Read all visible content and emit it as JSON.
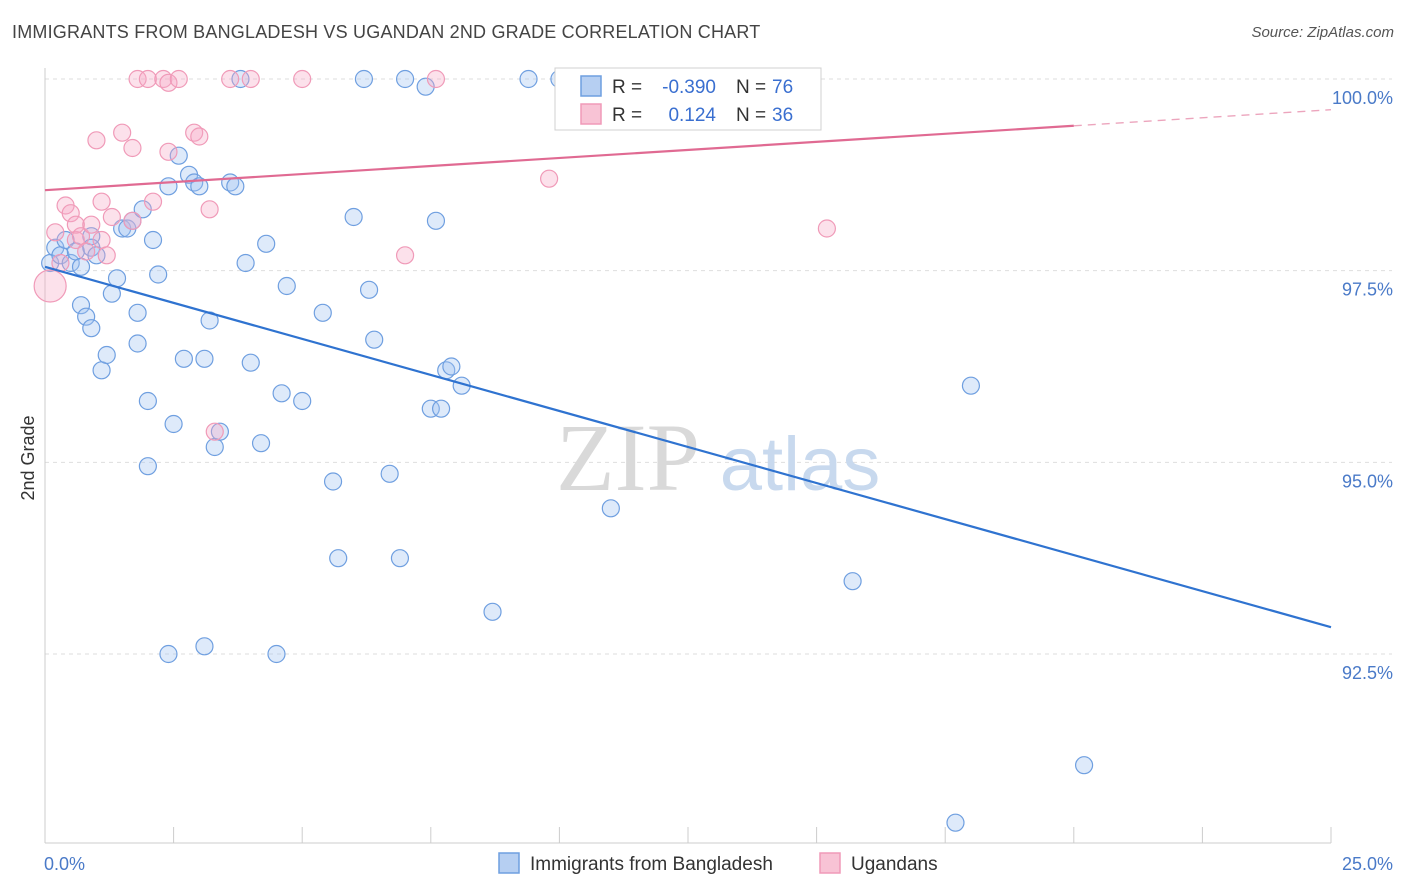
{
  "header": {
    "title": "IMMIGRANTS FROM BANGLADESH VS UGANDAN 2ND GRADE CORRELATION CHART",
    "source": "Source: ZipAtlas.com"
  },
  "watermark": {
    "zip": "ZIP",
    "atlas": "atlas"
  },
  "chart_data": {
    "type": "scatter",
    "ylabel": "2nd Grade",
    "xlim": [
      0,
      25
    ],
    "ylim": [
      90.3,
      100.35
    ],
    "x_tick_labels": {
      "min": "0.0%",
      "max": "25.0%"
    },
    "y_ticks": [
      {
        "value": 100.0,
        "label": "100.0%"
      },
      {
        "value": 97.5,
        "label": "97.5%"
      },
      {
        "value": 95.0,
        "label": "95.0%"
      },
      {
        "value": 92.5,
        "label": "92.5%"
      }
    ],
    "grid": true,
    "legend_position": "top-center",
    "stats": [
      {
        "r_label": "R =",
        "r_value": "-0.390",
        "n_label": "N =",
        "n_value": "76"
      },
      {
        "r_label": "R =",
        "r_value": "0.124",
        "n_label": "N =",
        "n_value": "36"
      }
    ],
    "series": [
      {
        "name": "Immigrants from Bangladesh",
        "color": "#6f9fe0",
        "line_color": "#2f73d0",
        "trend": {
          "x0": 0,
          "y0": 97.55,
          "x1": 25,
          "y1": 92.85,
          "solid_until": 25
        },
        "points": [
          [
            0.1,
            97.6
          ],
          [
            0.2,
            97.8
          ],
          [
            0.3,
            97.7
          ],
          [
            0.4,
            97.9
          ],
          [
            0.5,
            97.6
          ],
          [
            0.6,
            97.75
          ],
          [
            0.7,
            97.55
          ],
          [
            0.9,
            97.95
          ],
          [
            0.9,
            97.8
          ],
          [
            1.0,
            97.7
          ],
          [
            0.7,
            97.05
          ],
          [
            0.8,
            96.9
          ],
          [
            0.9,
            96.75
          ],
          [
            1.1,
            96.2
          ],
          [
            1.2,
            96.4
          ],
          [
            1.3,
            97.2
          ],
          [
            1.4,
            97.4
          ],
          [
            1.5,
            98.05
          ],
          [
            1.6,
            98.05
          ],
          [
            1.7,
            98.15
          ],
          [
            1.8,
            96.55
          ],
          [
            1.8,
            96.95
          ],
          [
            1.9,
            98.3
          ],
          [
            2.0,
            95.8
          ],
          [
            2.1,
            97.9
          ],
          [
            2.2,
            97.45
          ],
          [
            2.4,
            98.6
          ],
          [
            2.6,
            99.0
          ],
          [
            2.7,
            96.35
          ],
          [
            2.8,
            98.75
          ],
          [
            2.9,
            98.65
          ],
          [
            3.0,
            98.6
          ],
          [
            3.1,
            96.35
          ],
          [
            3.2,
            96.85
          ],
          [
            3.3,
            95.2
          ],
          [
            3.4,
            95.4
          ],
          [
            3.6,
            98.65
          ],
          [
            3.7,
            98.6
          ],
          [
            3.8,
            100.0
          ],
          [
            3.9,
            97.6
          ],
          [
            4.0,
            96.3
          ],
          [
            4.2,
            95.25
          ],
          [
            4.3,
            97.85
          ],
          [
            4.5,
            92.5
          ],
          [
            4.6,
            95.9
          ],
          [
            4.7,
            97.3
          ],
          [
            5.0,
            95.8
          ],
          [
            5.4,
            96.95
          ],
          [
            5.6,
            94.75
          ],
          [
            5.7,
            93.75
          ],
          [
            6.0,
            98.2
          ],
          [
            6.2,
            100.0
          ],
          [
            6.3,
            97.25
          ],
          [
            6.4,
            96.6
          ],
          [
            6.7,
            94.85
          ],
          [
            6.9,
            93.75
          ],
          [
            7.0,
            100.0
          ],
          [
            7.4,
            99.9
          ],
          [
            7.5,
            95.7
          ],
          [
            7.6,
            98.15
          ],
          [
            7.7,
            95.7
          ],
          [
            7.8,
            96.2
          ],
          [
            7.9,
            96.25
          ],
          [
            8.1,
            96.0
          ],
          [
            2.0,
            94.95
          ],
          [
            2.5,
            95.5
          ],
          [
            2.4,
            92.5
          ],
          [
            3.1,
            92.6
          ],
          [
            8.7,
            93.05
          ],
          [
            9.4,
            100.0
          ],
          [
            10.0,
            100.0
          ],
          [
            11.0,
            94.4
          ],
          [
            15.7,
            93.45
          ],
          [
            18.0,
            96.0
          ],
          [
            20.2,
            91.05
          ],
          [
            17.7,
            90.3
          ]
        ]
      },
      {
        "name": "Ugandans",
        "color": "#f09ab8",
        "line_color": "#e06a92",
        "trend": {
          "x0": 0,
          "y0": 98.55,
          "x1": 25,
          "y1": 99.6,
          "solid_until": 20
        },
        "points": [
          [
            0.1,
            97.3
          ],
          [
            0.2,
            98.0
          ],
          [
            0.3,
            97.6
          ],
          [
            0.4,
            98.35
          ],
          [
            0.5,
            98.25
          ],
          [
            0.6,
            97.9
          ],
          [
            0.6,
            98.1
          ],
          [
            0.7,
            97.95
          ],
          [
            0.8,
            97.75
          ],
          [
            0.9,
            98.1
          ],
          [
            1.0,
            99.2
          ],
          [
            1.1,
            97.9
          ],
          [
            1.1,
            98.4
          ],
          [
            1.2,
            97.7
          ],
          [
            1.3,
            98.2
          ],
          [
            1.5,
            99.3
          ],
          [
            1.7,
            99.1
          ],
          [
            1.7,
            98.15
          ],
          [
            1.8,
            100.0
          ],
          [
            2.0,
            100.0
          ],
          [
            2.1,
            98.4
          ],
          [
            2.3,
            100.0
          ],
          [
            2.4,
            99.95
          ],
          [
            2.4,
            99.05
          ],
          [
            2.6,
            100.0
          ],
          [
            2.9,
            99.3
          ],
          [
            3.0,
            99.25
          ],
          [
            3.2,
            98.3
          ],
          [
            3.3,
            95.4
          ],
          [
            3.6,
            100.0
          ],
          [
            4.0,
            100.0
          ],
          [
            5.0,
            100.0
          ],
          [
            7.6,
            100.0
          ],
          [
            9.8,
            98.7
          ],
          [
            7.0,
            97.7
          ],
          [
            15.2,
            98.05
          ]
        ]
      }
    ]
  },
  "legend_bottom": [
    {
      "label": "Immigrants from Bangladesh"
    },
    {
      "label": "Ugandans"
    }
  ]
}
